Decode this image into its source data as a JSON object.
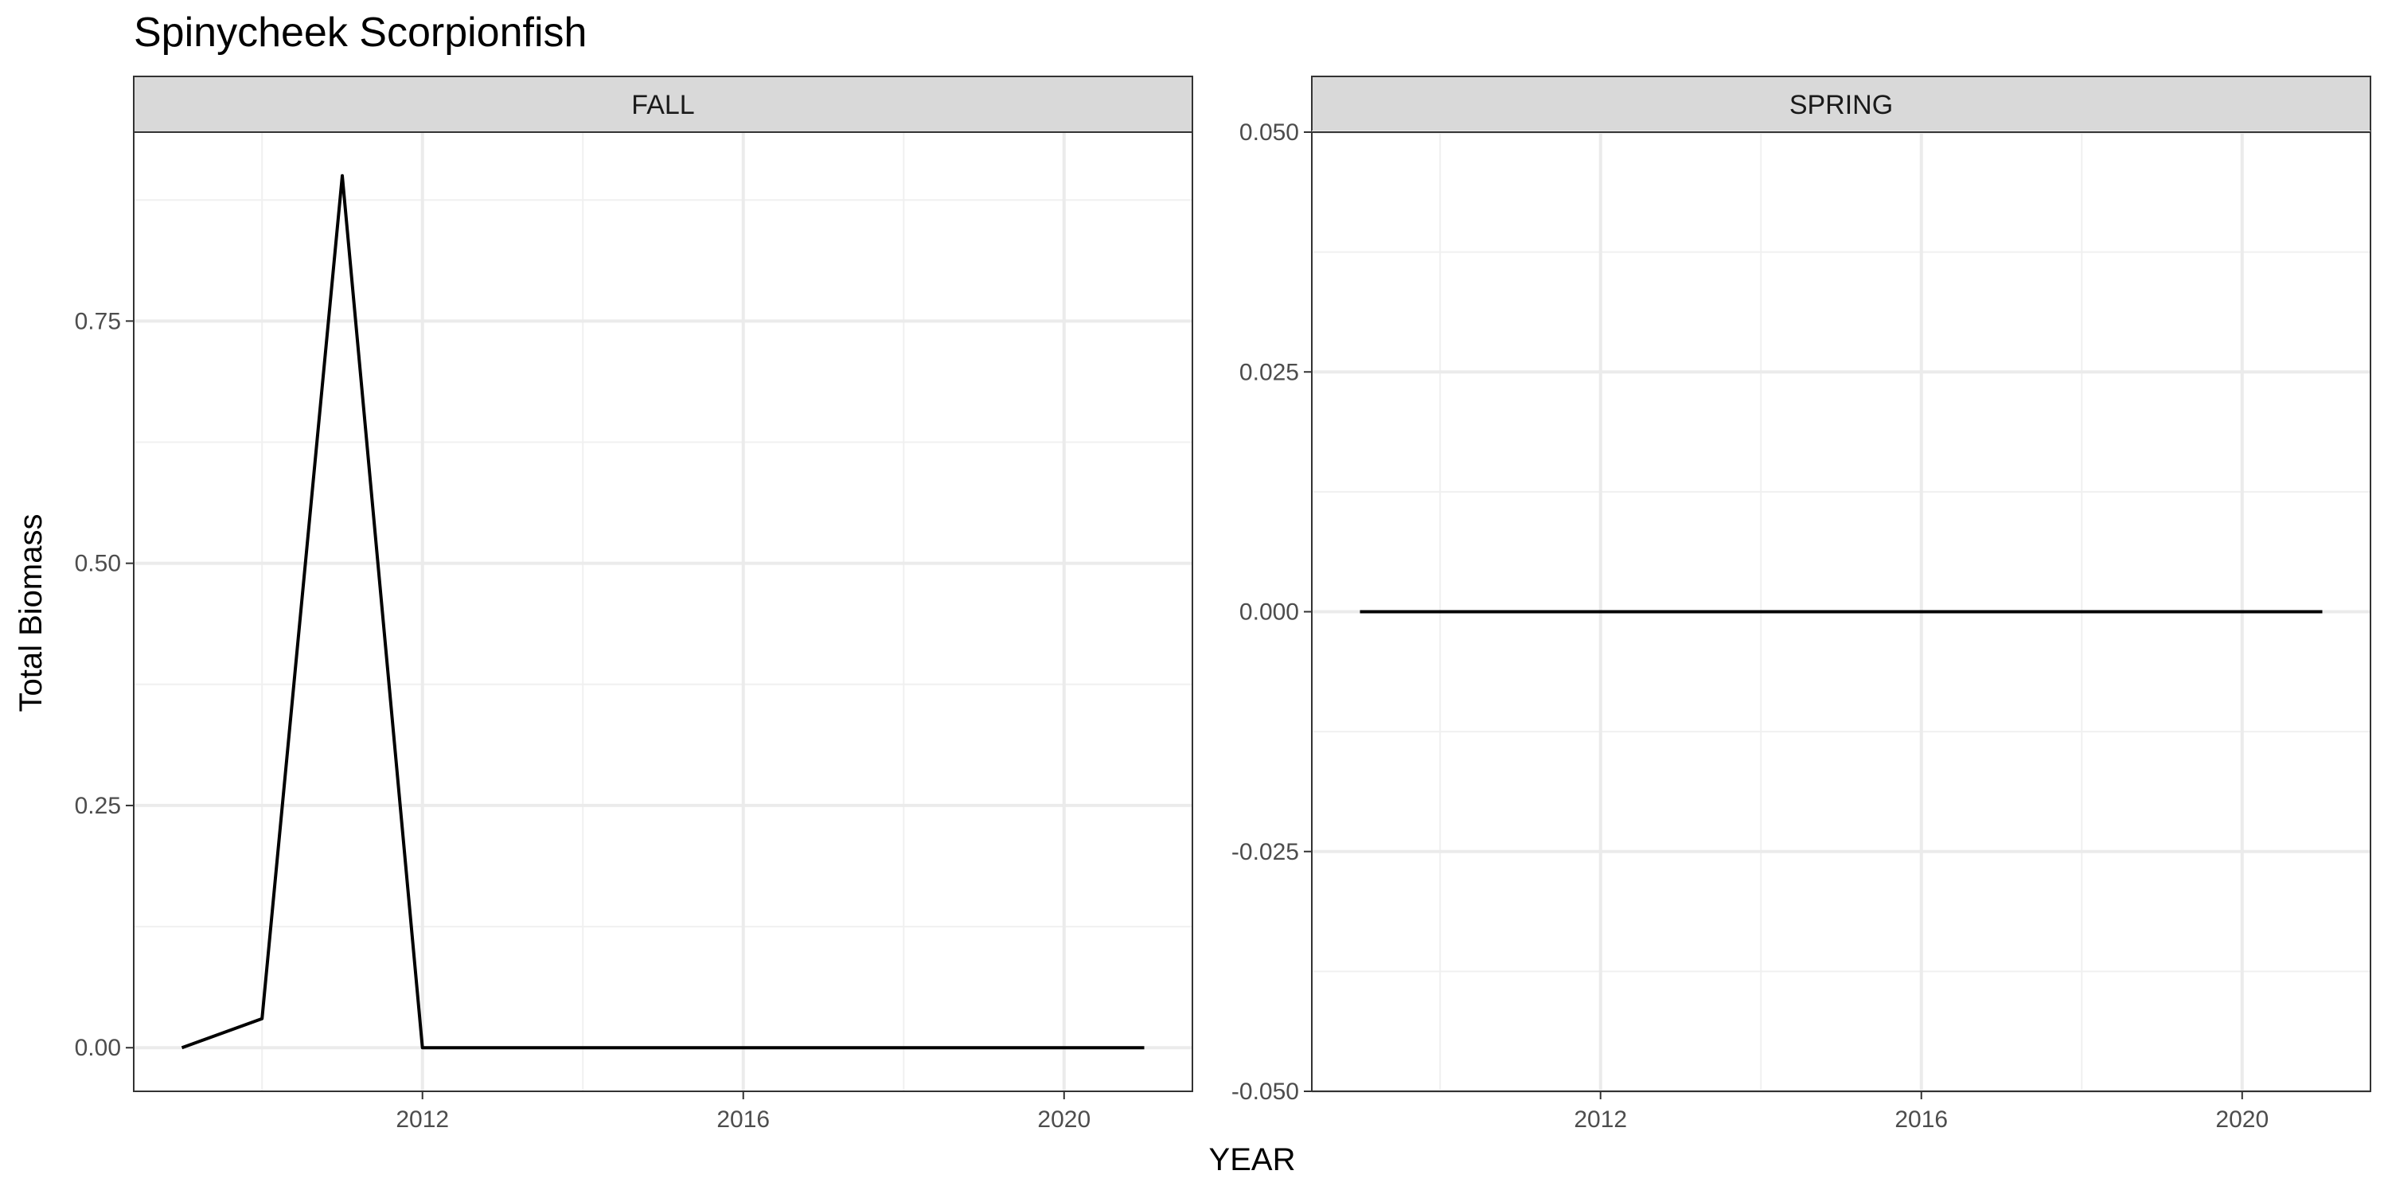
{
  "chart_data": {
    "type": "line",
    "title": "Spinycheek Scorpionfish",
    "xlabel": "YEAR",
    "ylabel": "Total Biomass",
    "grid": true,
    "legend": "none",
    "line_color": "#000000",
    "panels": [
      {
        "name": "FALL",
        "xlim": [
          2008.4,
          2021.6
        ],
        "ylim": [
          -0.045,
          0.945
        ],
        "x_ticks": [
          2012,
          2016,
          2020
        ],
        "y_ticks": [
          0.0,
          0.25,
          0.5,
          0.75
        ],
        "y_tick_labels": [
          "0.00",
          "0.25",
          "0.50",
          "0.75"
        ],
        "series": [
          {
            "x": [
              2009,
              2010,
              2011,
              2012,
              2013,
              2014,
              2015,
              2016,
              2017,
              2018,
              2019,
              2020,
              2021
            ],
            "y": [
              0.0,
              0.03,
              0.9,
              0.0,
              0.0,
              0.0,
              0.0,
              0.0,
              0.0,
              0.0,
              0.0,
              0.0,
              0.0
            ]
          }
        ]
      },
      {
        "name": "SPRING",
        "xlim": [
          2008.4,
          2021.6
        ],
        "ylim": [
          -0.05,
          0.05
        ],
        "x_ticks": [
          2012,
          2016,
          2020
        ],
        "y_ticks": [
          -0.05,
          -0.025,
          0.0,
          0.025,
          0.05
        ],
        "y_tick_labels": [
          "-0.050",
          "-0.025",
          "0.000",
          "0.025",
          "0.050"
        ],
        "series": [
          {
            "x": [
              2009,
              2010,
              2011,
              2012,
              2013,
              2014,
              2015,
              2016,
              2017,
              2018,
              2019,
              2020,
              2021
            ],
            "y": [
              0,
              0,
              0,
              0,
              0,
              0,
              0,
              0,
              0,
              0,
              0,
              0,
              0
            ]
          }
        ]
      }
    ]
  }
}
